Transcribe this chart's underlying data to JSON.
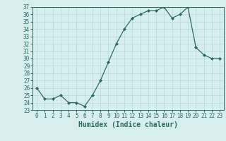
{
  "xlabel": "Humidex (Indice chaleur)",
  "ylabel": "",
  "x": [
    0,
    1,
    2,
    3,
    4,
    5,
    6,
    7,
    8,
    9,
    10,
    11,
    12,
    13,
    14,
    15,
    16,
    17,
    18,
    19,
    20,
    21,
    22,
    23
  ],
  "y": [
    26,
    24.5,
    24.5,
    25,
    24,
    24,
    23.5,
    25,
    27,
    29.5,
    32,
    34,
    35.5,
    36,
    36.5,
    36.5,
    37,
    35.5,
    36,
    37,
    31.5,
    30.5,
    30,
    30
  ],
  "ylim": [
    23,
    37
  ],
  "xlim": [
    -0.5,
    23.5
  ],
  "line_color": "#2e6b5e",
  "marker": "D",
  "marker_size": 2.0,
  "line_width": 0.9,
  "bg_color": "#d6eeee",
  "grid_color": "#b8d8d8",
  "tick_fontsize": 5.5,
  "label_fontsize": 7,
  "yticks": [
    23,
    24,
    25,
    26,
    27,
    28,
    29,
    30,
    31,
    32,
    33,
    34,
    35,
    36,
    37
  ],
  "xticks": [
    0,
    1,
    2,
    3,
    4,
    5,
    6,
    7,
    8,
    9,
    10,
    11,
    12,
    13,
    14,
    15,
    16,
    17,
    18,
    19,
    20,
    21,
    22,
    23
  ]
}
